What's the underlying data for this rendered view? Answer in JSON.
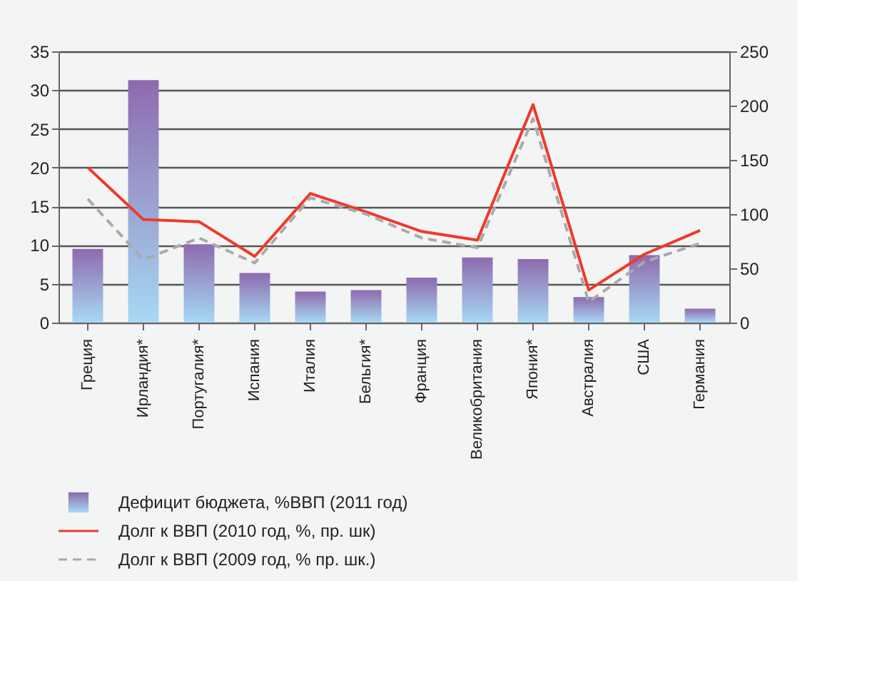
{
  "chart_data": {
    "type": "bar",
    "categories": [
      "Греция",
      "Ирландия*",
      "Португалия*",
      "Испания",
      "Италия",
      "Бельгия*",
      "Франция",
      "Великобритания",
      "Япония*",
      "Австралия",
      "США",
      "Германия"
    ],
    "series": [
      {
        "name": "Дефицит бюджета, %ВВП (2011 год)",
        "color": "#8e6aae",
        "values": [
          9.5,
          31.3,
          10.1,
          6.4,
          4.0,
          4.2,
          5.8,
          8.4,
          8.2,
          3.3,
          8.7,
          1.8
        ]
      },
      {
        "name": "Долг к ВВП (2010 год, %, пр. шк)",
        "type": "line",
        "axis": "y2",
        "color": "#ee3a2a",
        "line_style": "solid",
        "values": [
          143,
          95,
          93,
          61,
          119,
          102,
          84,
          76,
          201,
          30,
          63,
          85
        ]
      },
      {
        "name": "Долг к ВВП (2009 год, % пр. шк.)",
        "type": "line",
        "axis": "y2",
        "color": "#aaaaaa",
        "line_style": "dashed",
        "values": [
          114,
          58,
          78,
          55,
          115,
          100,
          78,
          69,
          188,
          19,
          56,
          73
        ]
      }
    ],
    "ylim": [
      0,
      35
    ],
    "yticks": [
      0,
      5,
      10,
      15,
      20,
      25,
      30,
      35
    ],
    "y2lim": [
      0,
      250
    ],
    "y2ticks": [
      0,
      50,
      100,
      150,
      200,
      250
    ],
    "grid": "y",
    "legend": "bottom"
  }
}
